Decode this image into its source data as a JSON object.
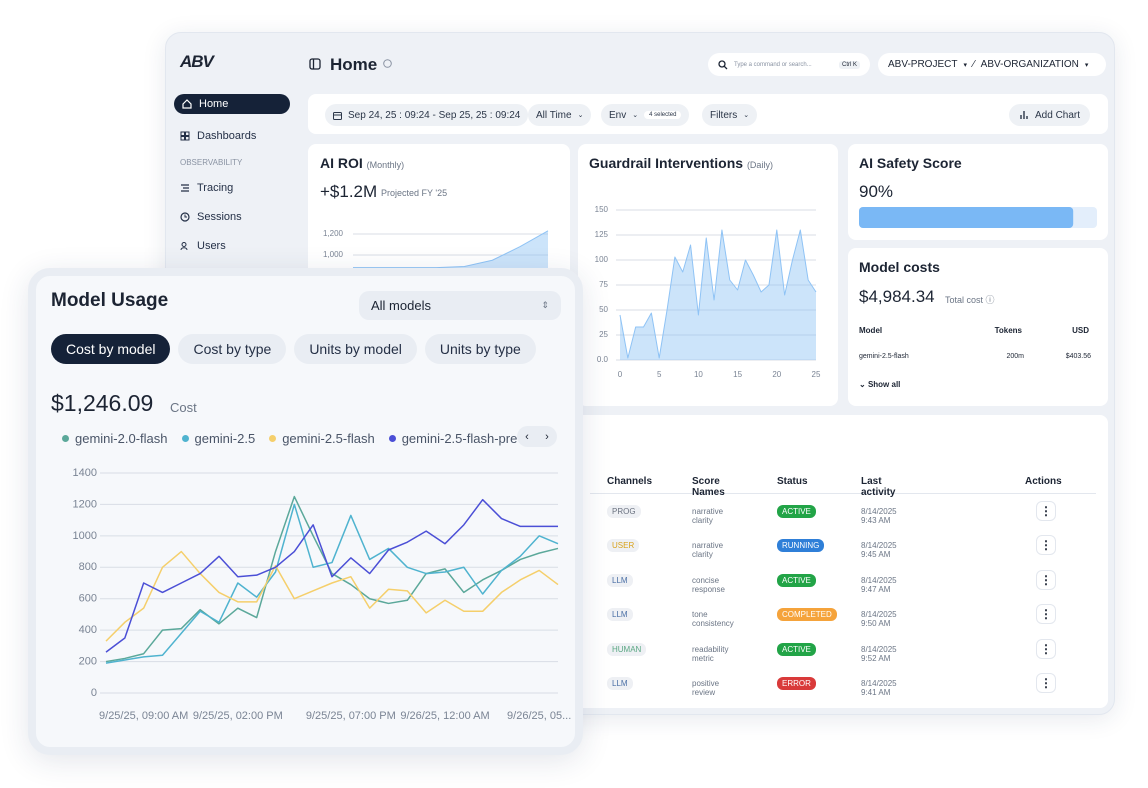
{
  "sidebar": {
    "logo": "ABV",
    "items": [
      "Home",
      "Dashboards"
    ],
    "section": "OBSERVABILITY",
    "section_items": [
      "Tracing",
      "Sessions",
      "Users"
    ]
  },
  "header": {
    "title": "Home",
    "search": "Type a command or search...",
    "shortcut": "Ctrl K",
    "project": "ABV-PROJECT",
    "organization": "ABV-ORGANIZATION"
  },
  "toolbar": {
    "date_range": "Sep 24, 25 : 09:24 - Sep 25, 25 : 09:24",
    "time": "All Time",
    "env": "Env",
    "env_selected": "4 selected",
    "filters": "Filters",
    "add_chart": "Add Chart"
  },
  "roi": {
    "title": "AI ROI",
    "period": "(Monthly)",
    "value": "+$1.2M",
    "note": "Projected FY '25",
    "chart": {
      "type": "area",
      "values": [
        880,
        880,
        880,
        880,
        890,
        950,
        1080,
        1230
      ],
      "ylim": [
        850,
        1250
      ],
      "yticks": [
        {
          "value": 1000,
          "label": "1,000"
        },
        {
          "value": 1200,
          "label": "1,200"
        }
      ],
      "color": "#8fc3f5"
    }
  },
  "guardrail": {
    "title": "Guardrail Interventions",
    "period": "(Daily)",
    "chart": {
      "type": "area",
      "x": [
        0,
        1,
        2,
        3,
        4,
        5,
        6,
        7,
        8,
        9,
        10,
        11,
        12,
        13,
        14,
        15,
        16,
        17,
        18,
        19,
        20,
        21,
        22,
        23,
        24,
        25
      ],
      "values": [
        45,
        2,
        33,
        33,
        47,
        2,
        50,
        103,
        88,
        115,
        45,
        122,
        60,
        130,
        80,
        70,
        100,
        85,
        68,
        75,
        130,
        65,
        100,
        130,
        80,
        68
      ],
      "xlim": [
        0,
        25
      ],
      "ylim": [
        0,
        150
      ],
      "xticks": [
        0,
        5,
        10,
        15,
        20,
        25
      ],
      "yticks": [
        {
          "value": 0,
          "label": "0.0"
        },
        25,
        50,
        75,
        100,
        125,
        150
      ],
      "color": "#8fc3f5"
    }
  },
  "safety": {
    "title": "AI Safety Score",
    "value": 90,
    "value_label": "90%",
    "color": "#7ab8f5"
  },
  "costs": {
    "title": "Model costs",
    "total": "$4,984.34",
    "total_label": "Total cost",
    "columns": [
      "Model",
      "Tokens",
      "USD"
    ],
    "rows": [
      [
        "gemini-2.5-flash",
        "200m",
        "$403.56"
      ]
    ],
    "show_all": "Show all"
  },
  "table": {
    "columns": [
      "Channels",
      "Score Names",
      "Status",
      "Last activity",
      "Actions"
    ],
    "rows": [
      {
        "channel": "PROG",
        "channel_color": "#6b7280",
        "score": "narrative clarity",
        "status": "ACTIVE",
        "status_color": "#22a447",
        "last": "8/14/2025 9:43 AM"
      },
      {
        "channel": "USER",
        "channel_color": "#d9a21b",
        "score": "narrative clarity",
        "status": "RUNNING",
        "status_color": "#2f7fd8",
        "last": "8/14/2025 9:45 AM"
      },
      {
        "channel": "LLM",
        "channel_color": "#4a6fa5",
        "score": "concise response",
        "status": "ACTIVE",
        "status_color": "#22a447",
        "last": "8/14/2025 9:47 AM"
      },
      {
        "channel": "LLM",
        "channel_color": "#4a6fa5",
        "score": "tone consistency",
        "status": "COMPLETED",
        "status_color": "#f5a33b",
        "last": "8/14/2025 9:50 AM"
      },
      {
        "channel": "HUMAN",
        "channel_color": "#5aa783",
        "score": "readability metric",
        "status": "ACTIVE",
        "status_color": "#22a447",
        "last": "8/14/2025 9:52 AM"
      },
      {
        "channel": "LLM",
        "channel_color": "#4a6fa5",
        "score": "positive review",
        "status": "ERROR",
        "status_color": "#d93a3a",
        "last": "8/14/2025 9:41 AM"
      }
    ]
  },
  "usage": {
    "title": "Model Usage",
    "selector": "All models",
    "tabs": [
      "Cost by model",
      "Cost by type",
      "Units by model",
      "Units by type"
    ],
    "total": "$1,246.09",
    "total_label": "Cost",
    "chart": {
      "type": "line",
      "categories": [
        null,
        null,
        "9/25/25, 09:00 AM",
        null,
        null,
        null,
        null,
        "9/25/25, 02:00 PM",
        null,
        null,
        null,
        null,
        null,
        "9/25/25, 07:00 PM",
        null,
        null,
        null,
        null,
        "9/26/25, 12:00 AM",
        null,
        null,
        null,
        null,
        "9/26/25, 05...",
        null
      ],
      "series": [
        {
          "name": "gemini-2.0-flash",
          "color": "#5ba89a",
          "values": [
            200,
            220,
            250,
            400,
            410,
            530,
            440,
            540,
            480,
            900,
            1250,
            1000,
            760,
            690,
            600,
            570,
            590,
            760,
            790,
            640,
            720,
            780,
            850,
            890,
            920
          ]
        },
        {
          "name": "gemini-2.5",
          "color": "#4fb3cf",
          "values": [
            190,
            210,
            230,
            240,
            380,
            520,
            450,
            700,
            610,
            770,
            1200,
            800,
            830,
            1130,
            850,
            920,
            800,
            760,
            770,
            800,
            630,
            780,
            870,
            1000,
            950
          ]
        },
        {
          "name": "gemini-2.5-flash",
          "color": "#f5cf6b",
          "values": [
            330,
            450,
            540,
            800,
            900,
            760,
            640,
            580,
            580,
            810,
            600,
            650,
            700,
            740,
            540,
            660,
            650,
            510,
            590,
            520,
            520,
            640,
            720,
            780,
            690
          ]
        },
        {
          "name": "gemini-2.5-flash-pre",
          "color": "#4b4fd6",
          "values": [
            260,
            350,
            700,
            640,
            700,
            760,
            870,
            740,
            750,
            800,
            900,
            1070,
            740,
            860,
            760,
            910,
            960,
            1030,
            950,
            1070,
            1230,
            1110,
            1060,
            1060,
            1060
          ]
        }
      ],
      "ylim": [
        0,
        1400
      ],
      "yticks": [
        0,
        200,
        400,
        600,
        800,
        1000,
        1200,
        1400
      ],
      "grid": true
    }
  }
}
